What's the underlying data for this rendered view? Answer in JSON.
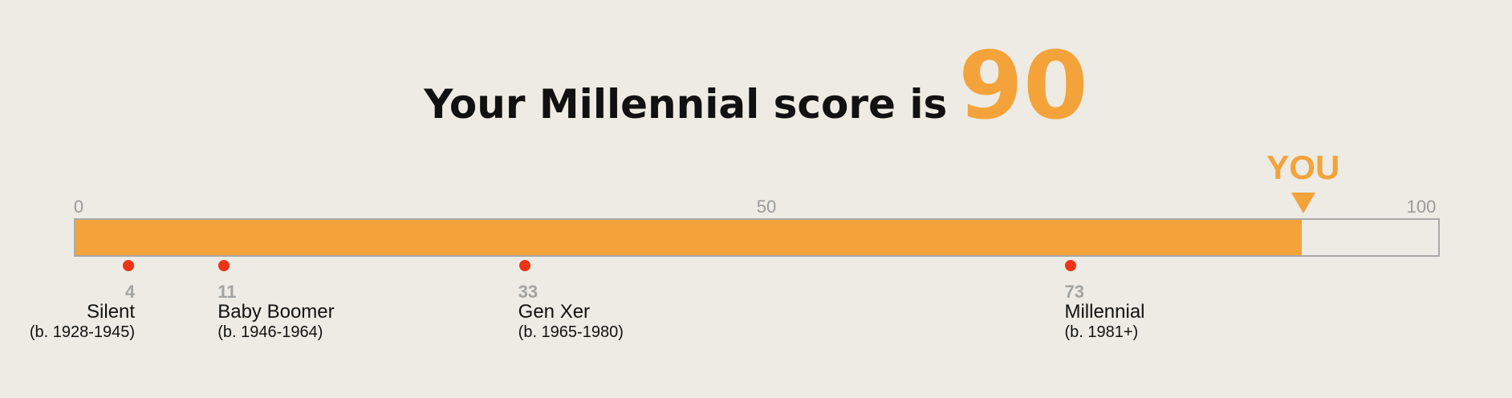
{
  "headline": {
    "text": "Your Millennial score is",
    "score": "90"
  },
  "scale": {
    "min_label": "0",
    "mid_label": "50",
    "max_label": "100",
    "min": 0,
    "max": 100
  },
  "you": {
    "label": "YOU",
    "score": 90
  },
  "generations": [
    {
      "score_label": "4",
      "score": 4,
      "name": "Silent",
      "years": "(b. 1928-1945)"
    },
    {
      "score_label": "11",
      "score": 11,
      "name": "Baby Boomer",
      "years": "(b. 1946-1964)"
    },
    {
      "score_label": "33",
      "score": 33,
      "name": "Gen Xer",
      "years": "(b. 1965-1980)"
    },
    {
      "score_label": "73",
      "score": 73,
      "name": "Millennial",
      "years": "(b. 1981+)"
    }
  ],
  "colors": {
    "accent": "#f4a33a",
    "marker": "#ee3317",
    "background": "#edebe3",
    "muted": "#9a9a9a"
  }
}
